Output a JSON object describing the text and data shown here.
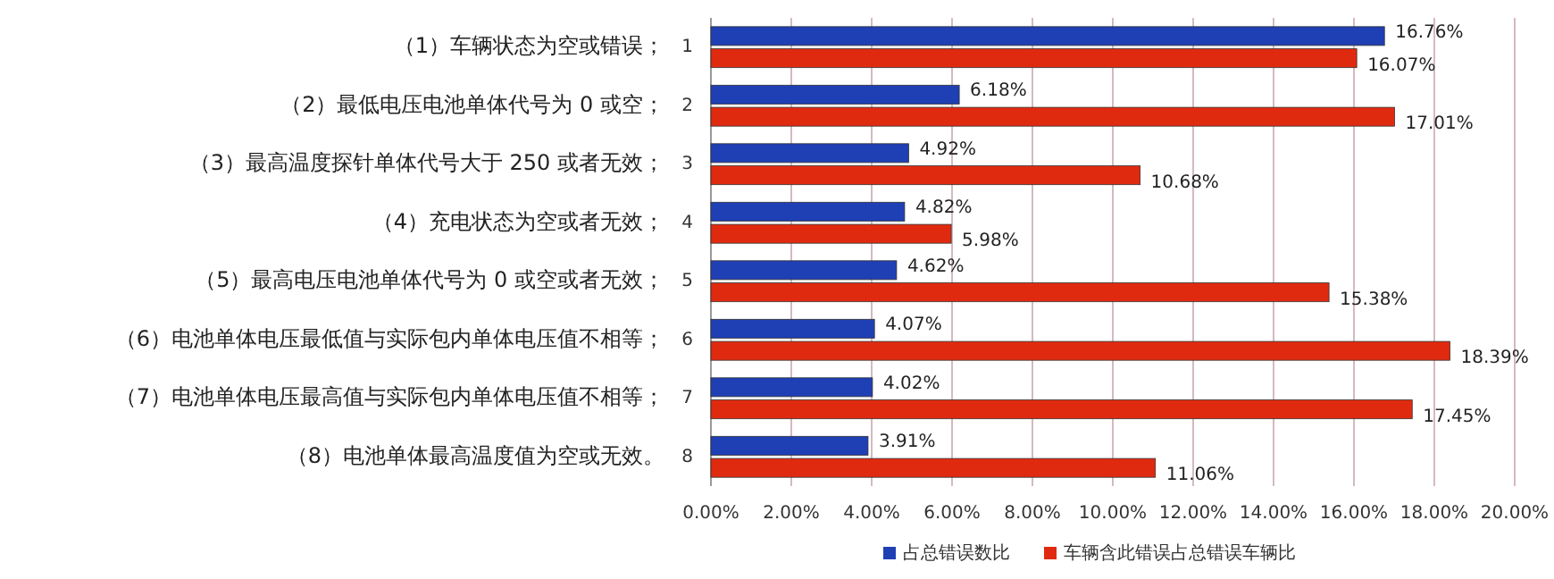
{
  "chart_data": {
    "type": "bar",
    "orientation": "horizontal",
    "categories": [
      "1",
      "2",
      "3",
      "4",
      "5",
      "6",
      "7",
      "8"
    ],
    "series": [
      {
        "name": "占总错误数比",
        "color": "#1f3fb5",
        "values": [
          16.76,
          6.18,
          4.92,
          4.82,
          4.62,
          4.07,
          4.02,
          3.91
        ],
        "value_labels": [
          "16.76%",
          "6.18%",
          "4.92%",
          "4.82%",
          "4.62%",
          "4.07%",
          "4.02%",
          "3.91%"
        ]
      },
      {
        "name": "车辆含此错误占总错误车辆比",
        "color": "#e02a10",
        "values": [
          16.07,
          17.01,
          10.68,
          5.98,
          15.38,
          18.39,
          17.45,
          11.06
        ],
        "value_labels": [
          "16.07%",
          "17.01%",
          "10.68%",
          "5.98%",
          "15.38%",
          "18.39%",
          "17.45%",
          "11.06%"
        ]
      }
    ],
    "annotations": [
      "（1）车辆状态为空或错误；",
      "（2）最低电压电池单体代号为 0 或空；",
      "（3）最高温度探针单体代号大于 250 或者无效；",
      "（4）充电状态为空或者无效；",
      "（5）最高电压电池单体代号为 0 或空或者无效；",
      "（6）电池单体电压最低值与实际包内单体电压值不相等；",
      "（7）电池单体电压最高值与实际包内单体电压值不相等；",
      "（8）电池单体最高温度值为空或无效。"
    ],
    "xlim": [
      0,
      20
    ],
    "xticks": [
      {
        "value": 0,
        "label": "0.00%"
      },
      {
        "value": 2,
        "label": "2.00%"
      },
      {
        "value": 4,
        "label": "4.00%"
      },
      {
        "value": 6,
        "label": "6.00%"
      },
      {
        "value": 8,
        "label": "8.00%"
      },
      {
        "value": 10,
        "label": "10.00%"
      },
      {
        "value": 12,
        "label": "12.00%"
      },
      {
        "value": 14,
        "label": "14.00%"
      },
      {
        "value": 16,
        "label": "16.00%"
      },
      {
        "value": 18,
        "label": "18.00%"
      },
      {
        "value": 20,
        "label": "20.00%"
      }
    ],
    "grid": "x",
    "legend": "bottom"
  }
}
